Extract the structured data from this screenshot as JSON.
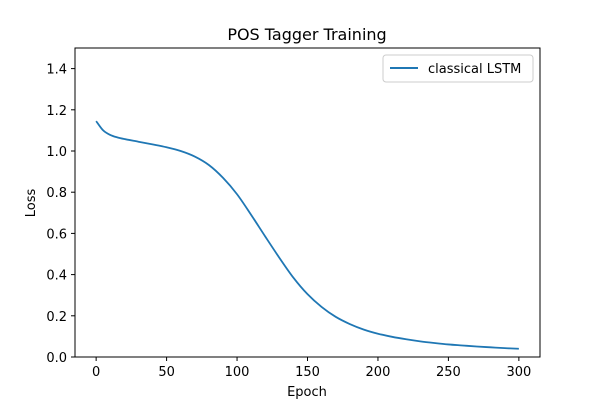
{
  "chart_data": {
    "type": "line",
    "title": "POS Tagger Training",
    "xlabel": "Epoch",
    "ylabel": "Loss",
    "xlim": [
      -15,
      315
    ],
    "ylim": [
      0,
      1.5
    ],
    "xticks": [
      0,
      50,
      100,
      150,
      200,
      250,
      300
    ],
    "yticks": [
      0.0,
      0.2,
      0.4,
      0.6,
      0.8,
      1.0,
      1.2,
      1.4
    ],
    "xtick_labels": [
      "0",
      "50",
      "100",
      "150",
      "200",
      "250",
      "300"
    ],
    "ytick_labels": [
      "0.0",
      "0.2",
      "0.4",
      "0.6",
      "0.8",
      "1.0",
      "1.2",
      "1.4"
    ],
    "grid": false,
    "legend": {
      "position": "top-right"
    },
    "series": [
      {
        "name": "classical LSTM",
        "color": "#1f77b4",
        "x": [
          0,
          5,
          10,
          15,
          20,
          30,
          40,
          50,
          60,
          70,
          80,
          90,
          100,
          110,
          120,
          130,
          140,
          150,
          160,
          170,
          180,
          190,
          200,
          210,
          220,
          230,
          240,
          250,
          260,
          270,
          280,
          290,
          300
        ],
        "y": [
          1.145,
          1.1,
          1.078,
          1.066,
          1.058,
          1.045,
          1.032,
          1.018,
          1.0,
          0.973,
          0.932,
          0.87,
          0.79,
          0.69,
          0.585,
          0.482,
          0.385,
          0.305,
          0.243,
          0.195,
          0.16,
          0.133,
          0.113,
          0.098,
          0.086,
          0.076,
          0.068,
          0.061,
          0.056,
          0.051,
          0.047,
          0.043,
          0.04
        ]
      }
    ]
  }
}
